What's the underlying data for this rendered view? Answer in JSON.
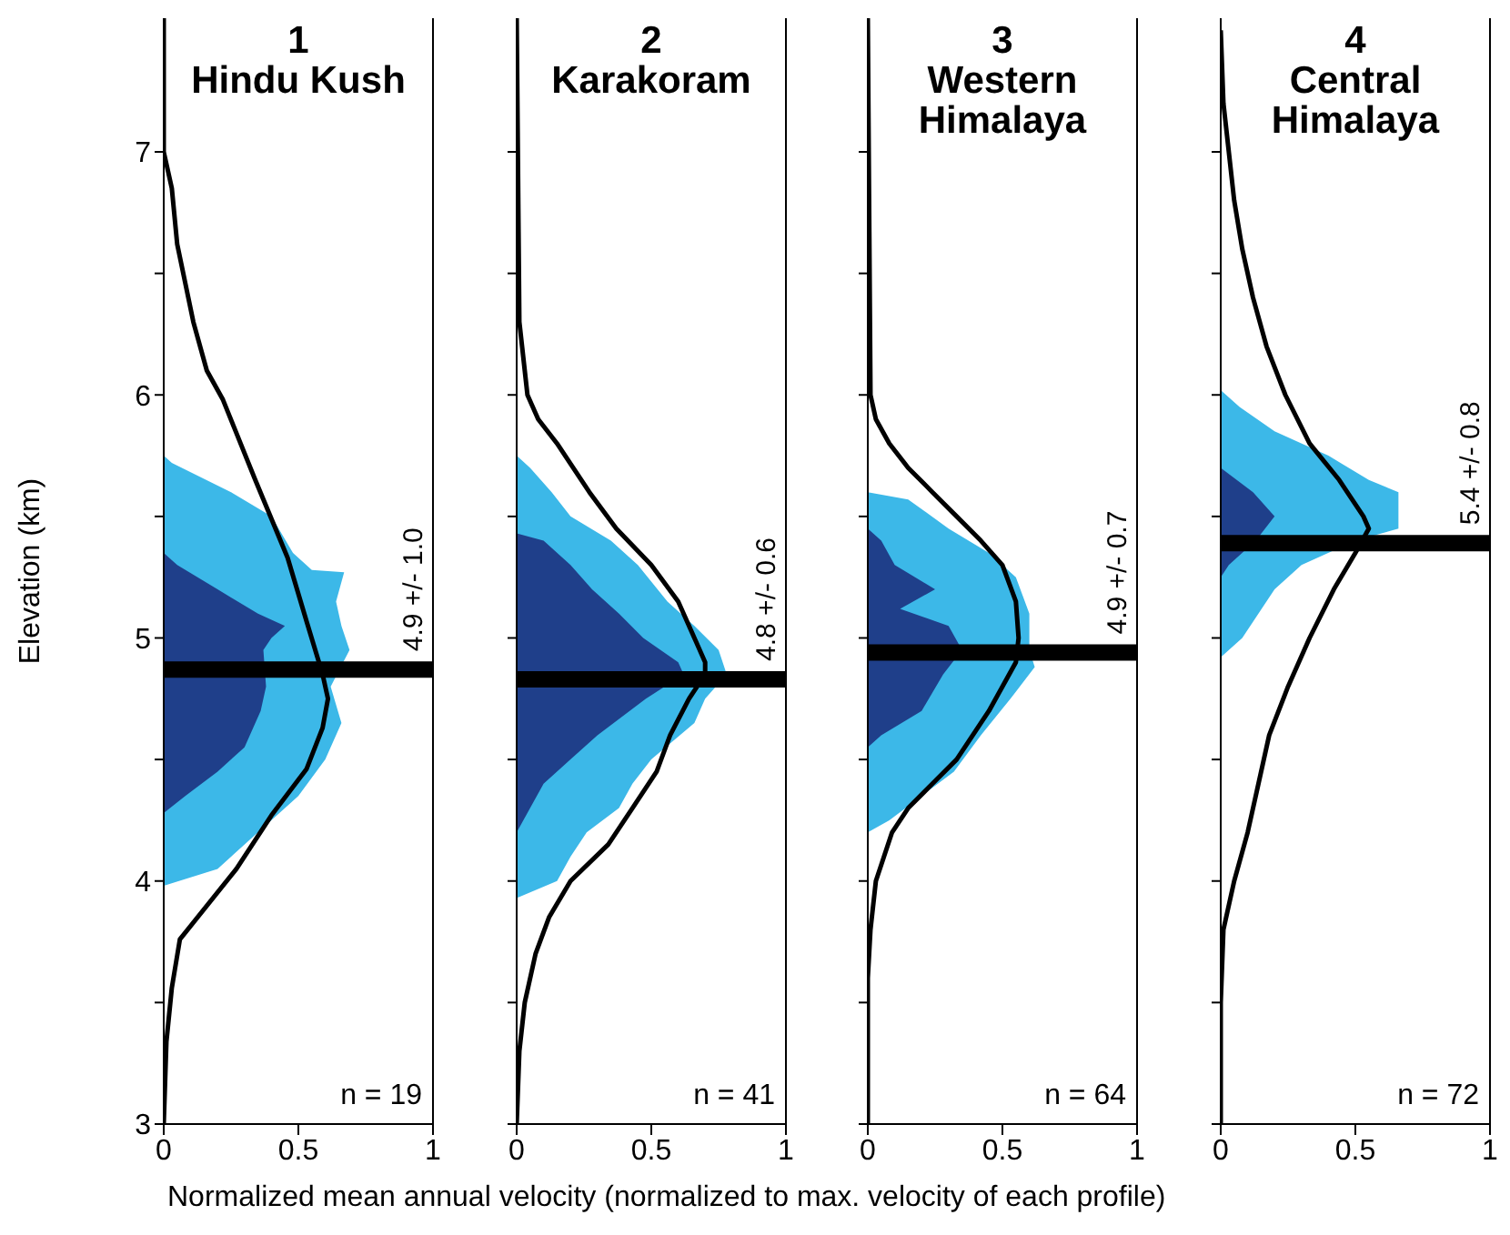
{
  "chart_data": [
    {
      "type": "area",
      "orientation": "horizontal",
      "title": "1",
      "subtitle": "Hindu Kush",
      "ylabel": "Elevation (km)",
      "xlabel": "Normalized mean annual velocity (normalized to max. velocity of each profile)",
      "xlim": [
        0,
        1
      ],
      "xticks": [
        0,
        0.5,
        1
      ],
      "ylim": [
        3,
        7.55
      ],
      "yticks": [
        3,
        {
          "value": 3.5,
          "label": null
        },
        4,
        {
          "value": 4.5,
          "label": null
        },
        5,
        {
          "value": 5.5,
          "label": null
        },
        6,
        {
          "value": 6.5,
          "label": null
        },
        7
      ],
      "series": [
        {
          "color": "#3cb8e8",
          "x": [
            5.75,
            5.72,
            5.6,
            5.5,
            5.35,
            5.28,
            5.27,
            5.15,
            5.05,
            4.95,
            4.8,
            4.65,
            4.5,
            4.35,
            4.2,
            4.05,
            3.98
          ],
          "values": [
            0,
            0.03,
            0.25,
            0.4,
            0.48,
            0.55,
            0.67,
            0.64,
            0.66,
            0.69,
            0.62,
            0.66,
            0.6,
            0.5,
            0.35,
            0.2,
            0
          ]
        },
        {
          "color": "#1f3f8a",
          "x": [
            5.35,
            5.3,
            5.2,
            5.1,
            5.05,
            5.0,
            4.95,
            4.8,
            4.7,
            4.55,
            4.45,
            4.35,
            4.28
          ],
          "values": [
            0,
            0.05,
            0.2,
            0.35,
            0.45,
            0.4,
            0.37,
            0.38,
            0.36,
            0.3,
            0.2,
            0.08,
            0
          ]
        },
        {
          "type": "line",
          "color": "#000000",
          "x": [
            7.55,
            7.0,
            6.85,
            6.62,
            6.3,
            6.1,
            5.98,
            5.65,
            5.33,
            5.07,
            4.85,
            4.75,
            4.63,
            4.46,
            4.27,
            4.05,
            3.76,
            3.56,
            3.34,
            3.0
          ],
          "values": [
            0,
            0,
            0.03,
            0.05,
            0.11,
            0.16,
            0.22,
            0.34,
            0.46,
            0.53,
            0.59,
            0.61,
            0.59,
            0.53,
            0.4,
            0.27,
            0.06,
            0.03,
            0.01,
            0
          ]
        }
      ],
      "ref_lines": [
        {
          "axis": "y",
          "value": 4.87,
          "label": "4.9 +/- 1.0",
          "color": "#000000"
        }
      ],
      "annotations": [
        "n = 19"
      ]
    },
    {
      "type": "area",
      "orientation": "horizontal",
      "title": "2",
      "subtitle": "Karakoram",
      "xlim": [
        0,
        1
      ],
      "xticks": [
        0,
        0.5,
        1
      ],
      "ylim": [
        3,
        7.55
      ],
      "yticks": [
        3,
        {
          "value": 3.5,
          "label": null
        },
        4,
        {
          "value": 4.5,
          "label": null
        },
        5,
        {
          "value": 5.5,
          "label": null
        },
        6,
        {
          "value": 6.5,
          "label": null
        },
        7
      ],
      "tick_labels": "x",
      "series": [
        {
          "color": "#3cb8e8",
          "x": [
            5.75,
            5.7,
            5.6,
            5.5,
            5.4,
            5.3,
            5.15,
            5.05,
            4.95,
            4.85,
            4.75,
            4.65,
            4.5,
            4.4,
            4.3,
            4.2,
            4.1,
            4.0,
            3.93
          ],
          "values": [
            0,
            0.05,
            0.13,
            0.2,
            0.35,
            0.45,
            0.56,
            0.66,
            0.75,
            0.78,
            0.7,
            0.66,
            0.5,
            0.43,
            0.38,
            0.26,
            0.2,
            0.15,
            0
          ]
        },
        {
          "color": "#1f3f8a",
          "x": [
            5.43,
            5.4,
            5.3,
            5.2,
            5.1,
            5.0,
            4.9,
            4.85,
            4.75,
            4.6,
            4.5,
            4.4,
            4.3,
            4.2
          ],
          "values": [
            0,
            0.1,
            0.2,
            0.28,
            0.38,
            0.47,
            0.6,
            0.62,
            0.48,
            0.3,
            0.2,
            0.1,
            0.05,
            0
          ]
        },
        {
          "type": "line",
          "color": "#000000",
          "x": [
            7.55,
            6.3,
            6.2,
            6.0,
            5.9,
            5.8,
            5.6,
            5.45,
            5.3,
            5.15,
            5.0,
            4.9,
            4.85,
            4.75,
            4.6,
            4.45,
            4.3,
            4.15,
            4.0,
            3.85,
            3.7,
            3.5,
            3.3,
            3.0
          ],
          "values": [
            0,
            0.01,
            0.02,
            0.04,
            0.08,
            0.15,
            0.27,
            0.37,
            0.5,
            0.6,
            0.66,
            0.7,
            0.7,
            0.64,
            0.57,
            0.52,
            0.43,
            0.34,
            0.2,
            0.12,
            0.07,
            0.03,
            0.01,
            0
          ]
        }
      ],
      "ref_lines": [
        {
          "axis": "y",
          "value": 4.83,
          "label": "4.8 +/- 0.6",
          "color": "#000000"
        }
      ],
      "annotations": [
        "n = 41"
      ]
    },
    {
      "type": "area",
      "orientation": "horizontal",
      "title": "3",
      "subtitle": "Western Himalaya",
      "xlim": [
        0,
        1
      ],
      "xticks": [
        0,
        0.5,
        1
      ],
      "ylim": [
        3,
        7.55
      ],
      "yticks": [
        3,
        {
          "value": 3.5,
          "label": null
        },
        4,
        {
          "value": 4.5,
          "label": null
        },
        5,
        {
          "value": 5.5,
          "label": null
        },
        6,
        {
          "value": 6.5,
          "label": null
        },
        7
      ],
      "tick_labels": "x",
      "series": [
        {
          "color": "#3cb8e8",
          "x": [
            5.6,
            5.57,
            5.45,
            5.35,
            5.25,
            5.1,
            4.95,
            4.88,
            4.75,
            4.6,
            4.45,
            4.35,
            4.25,
            4.2
          ],
          "values": [
            0,
            0.15,
            0.3,
            0.45,
            0.55,
            0.6,
            0.6,
            0.62,
            0.53,
            0.42,
            0.32,
            0.2,
            0.08,
            0
          ]
        },
        {
          "color": "#1f3f8a",
          "x": [
            5.45,
            5.4,
            5.3,
            5.2,
            5.12,
            5.05,
            4.95,
            4.85,
            4.7,
            4.6,
            4.55
          ],
          "values": [
            0,
            0.05,
            0.1,
            0.25,
            0.12,
            0.3,
            0.35,
            0.28,
            0.2,
            0.05,
            0
          ]
        },
        {
          "type": "line",
          "color": "#000000",
          "x": [
            7.55,
            6.0,
            5.9,
            5.8,
            5.7,
            5.6,
            5.5,
            5.4,
            5.3,
            5.15,
            5.0,
            4.9,
            4.8,
            4.7,
            4.6,
            4.5,
            4.4,
            4.3,
            4.2,
            4.1,
            4.0,
            3.8,
            3.6,
            3.0
          ],
          "values": [
            0,
            0.01,
            0.03,
            0.08,
            0.15,
            0.24,
            0.33,
            0.42,
            0.5,
            0.55,
            0.56,
            0.55,
            0.5,
            0.45,
            0.39,
            0.33,
            0.24,
            0.15,
            0.09,
            0.06,
            0.03,
            0.01,
            0,
            0
          ]
        }
      ],
      "ref_lines": [
        {
          "axis": "y",
          "value": 4.94,
          "label": "4.9 +/- 0.7",
          "color": "#000000"
        }
      ],
      "annotations": [
        "n = 64"
      ]
    },
    {
      "type": "area",
      "orientation": "horizontal",
      "title": "4",
      "subtitle": "Central Himalaya",
      "xlim": [
        0,
        1
      ],
      "xticks": [
        0,
        0.5,
        1
      ],
      "ylim": [
        3,
        7.55
      ],
      "yticks": [
        3,
        {
          "value": 3.5,
          "label": null
        },
        4,
        {
          "value": 4.5,
          "label": null
        },
        5,
        {
          "value": 5.5,
          "label": null
        },
        6,
        {
          "value": 6.5,
          "label": null
        },
        7
      ],
      "tick_labels": "x",
      "series": [
        {
          "color": "#3cb8e8",
          "x": [
            6.02,
            5.95,
            5.85,
            5.75,
            5.65,
            5.6,
            5.45,
            5.4,
            5.3,
            5.2,
            5.1,
            5.0,
            4.92
          ],
          "values": [
            0,
            0.07,
            0.2,
            0.4,
            0.55,
            0.66,
            0.66,
            0.5,
            0.3,
            0.2,
            0.14,
            0.08,
            0
          ]
        },
        {
          "color": "#1f3f8a",
          "x": [
            5.7,
            5.6,
            5.5,
            5.4,
            5.3,
            5.25
          ],
          "values": [
            0,
            0.12,
            0.2,
            0.13,
            0.03,
            0
          ]
        },
        {
          "type": "line",
          "color": "#000000",
          "x": [
            7.5,
            7.2,
            7.0,
            6.8,
            6.6,
            6.4,
            6.2,
            6.0,
            5.8,
            5.65,
            5.5,
            5.45,
            5.35,
            5.2,
            5.0,
            4.8,
            4.6,
            4.4,
            4.2,
            4.0,
            3.8,
            3.5,
            3.0
          ],
          "values": [
            0,
            0.01,
            0.03,
            0.05,
            0.08,
            0.12,
            0.17,
            0.24,
            0.33,
            0.44,
            0.53,
            0.55,
            0.5,
            0.42,
            0.33,
            0.25,
            0.18,
            0.14,
            0.1,
            0.05,
            0.01,
            0,
            0
          ]
        }
      ],
      "ref_lines": [
        {
          "axis": "y",
          "value": 5.39,
          "label": "5.4 +/- 0.8",
          "color": "#000000"
        }
      ],
      "annotations": [
        "n = 72"
      ]
    }
  ]
}
